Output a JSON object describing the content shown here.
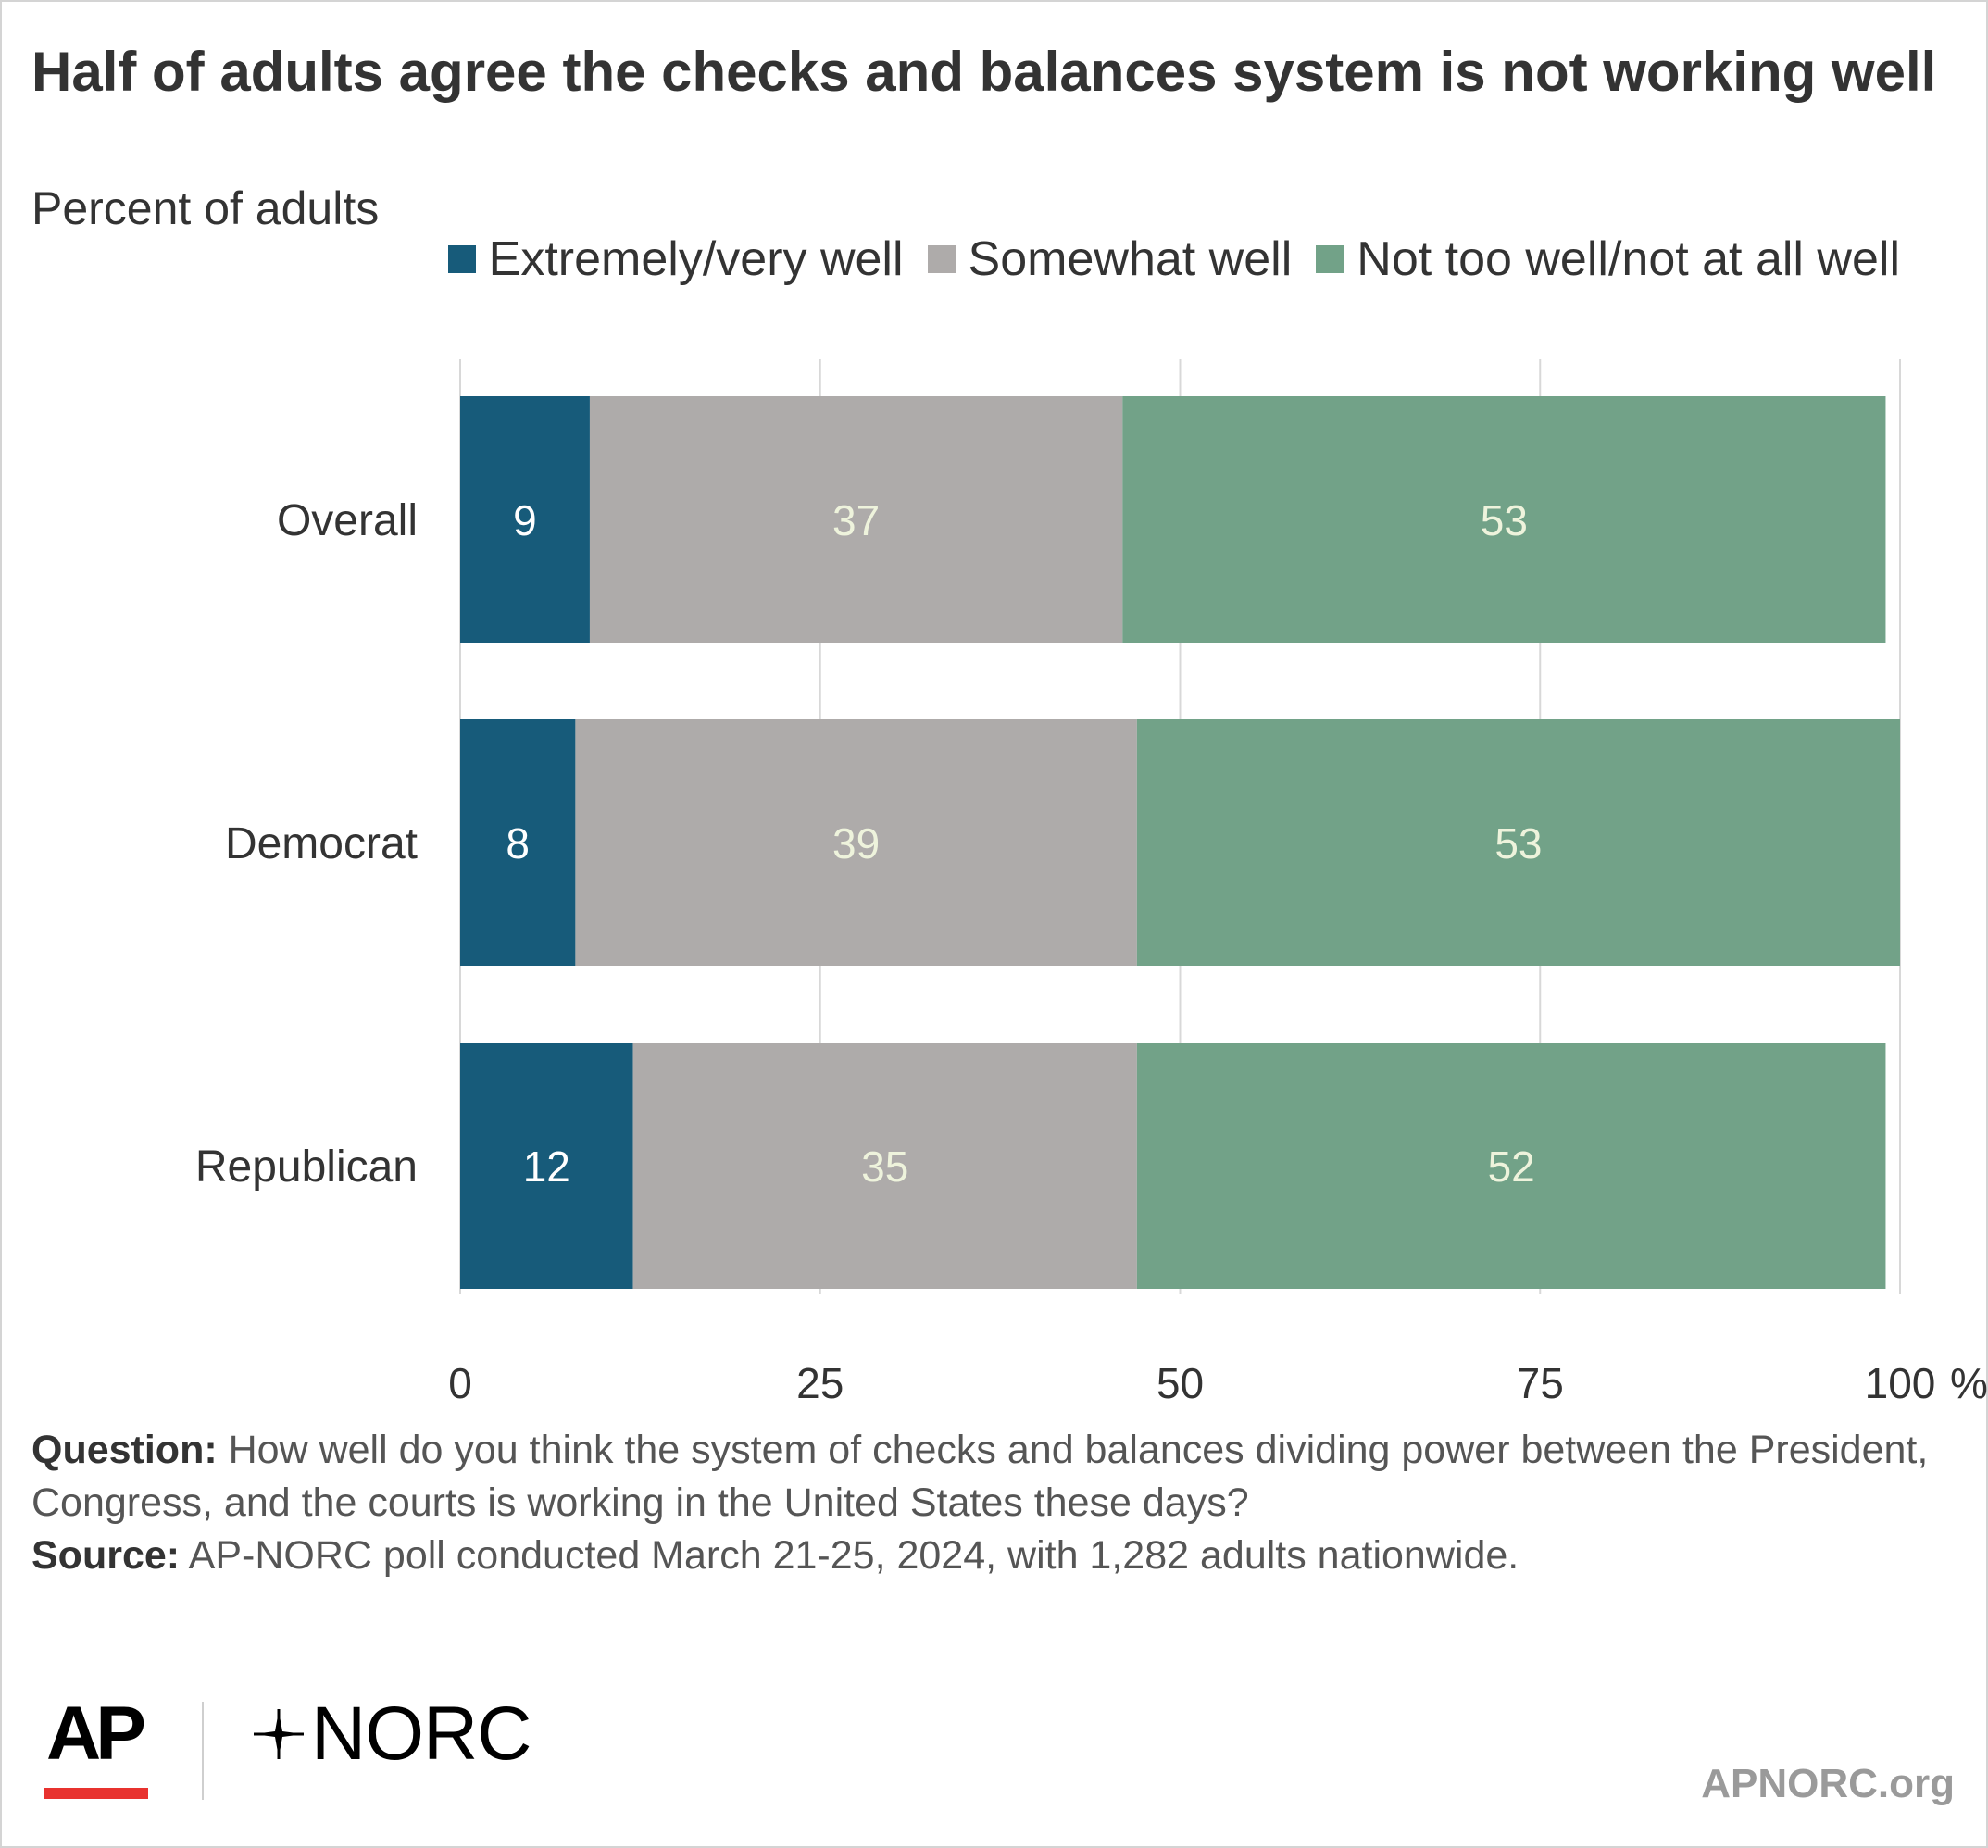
{
  "title": "Half of adults agree the checks and balances system is not working well",
  "subtitle": "Percent of adults",
  "legend": [
    {
      "label": "Extremely/very well",
      "color": "#175b7a"
    },
    {
      "label": "Somewhat well",
      "color": "#aeabaa"
    },
    {
      "label": "Not too well/not at all well",
      "color": "#72a288"
    }
  ],
  "chart_data": {
    "type": "bar",
    "orientation": "horizontal",
    "stacked": true,
    "categories": [
      "Overall",
      "Democrat",
      "Republican"
    ],
    "series": [
      {
        "name": "Extremely/very well",
        "values": [
          9,
          8,
          12
        ],
        "color": "#175b7a",
        "label_color": "#ffffff"
      },
      {
        "name": "Somewhat well",
        "values": [
          37,
          39,
          35
        ],
        "color": "#aeabaa",
        "label_color": "#eef3dc"
      },
      {
        "name": "Not too well/not at all well",
        "values": [
          53,
          53,
          52
        ],
        "color": "#72a288",
        "label_color": "#eef3dc"
      }
    ],
    "x_ticks": [
      0,
      25,
      50,
      75,
      100
    ],
    "x_tick_suffix": "%",
    "xlim": [
      0,
      100
    ],
    "grid": true,
    "legend_position": "top-right"
  },
  "footnote": {
    "question_label": "Question:",
    "question_text": " How well do you think the system of checks and balances dividing power between the President, Congress, and the courts is working in the United States these days?",
    "source_label": "Source:",
    "source_text": " AP-NORC poll conducted March 21-25, 2024, with 1,282 adults nationwide."
  },
  "branding": {
    "ap_logo": "AP",
    "norc_logo": "NORC",
    "site": "APNORC.org"
  }
}
